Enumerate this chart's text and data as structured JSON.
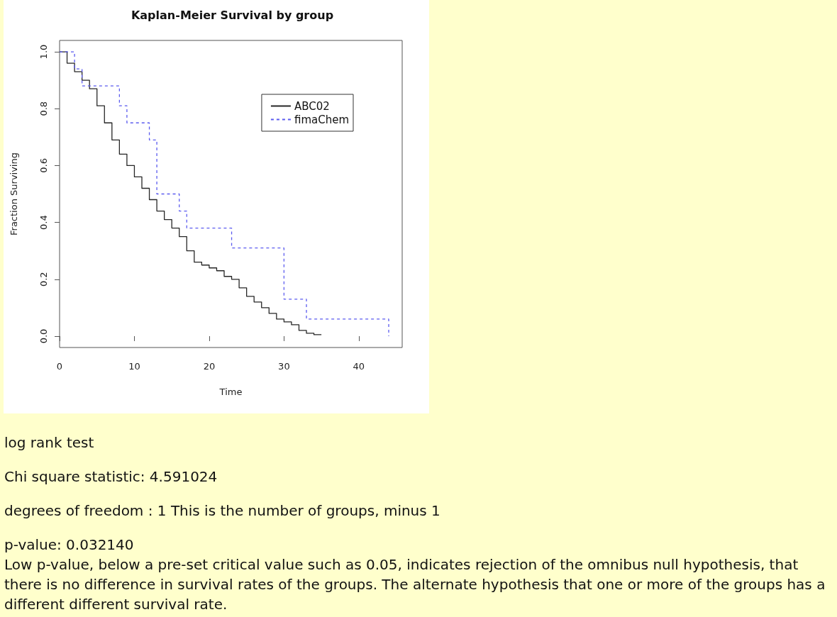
{
  "chart_data": {
    "type": "step",
    "title": "Kaplan-Meier Survival by group",
    "xlabel": "Time",
    "ylabel": "Fraction Surviving",
    "series": [
      {
        "name": "ABC02",
        "color": "#262626",
        "line_style": "solid",
        "x": [
          0,
          1,
          2,
          3,
          4,
          5,
          6,
          7,
          8,
          9,
          10,
          11,
          12,
          13,
          14,
          15,
          16,
          17,
          18,
          19,
          20,
          21,
          22,
          23,
          24,
          25,
          26,
          27,
          28,
          29,
          30,
          31,
          32,
          33,
          34,
          35
        ],
        "values": [
          1.0,
          0.96,
          0.93,
          0.9,
          0.87,
          0.81,
          0.75,
          0.69,
          0.64,
          0.6,
          0.56,
          0.52,
          0.48,
          0.44,
          0.41,
          0.38,
          0.35,
          0.3,
          0.26,
          0.25,
          0.24,
          0.23,
          0.21,
          0.2,
          0.17,
          0.14,
          0.12,
          0.1,
          0.08,
          0.06,
          0.05,
          0.04,
          0.02,
          0.01,
          0.005,
          0.005
        ]
      },
      {
        "name": "fimaChem",
        "color": "#5b5bef",
        "line_style": "dashed",
        "x": [
          0,
          2,
          3,
          8,
          9,
          12,
          13,
          16,
          17,
          23,
          30,
          33,
          44
        ],
        "values": [
          1.0,
          0.94,
          0.88,
          0.81,
          0.75,
          0.69,
          0.5,
          0.44,
          0.38,
          0.31,
          0.13,
          0.06,
          0
        ]
      }
    ],
    "xlim": [
      0,
      45.8
    ],
    "ylim": [
      -0.04,
      1.04
    ],
    "xticks": [
      0,
      10,
      20,
      30,
      40
    ],
    "yticks": [
      {
        "value": 0,
        "label": "0.0"
      },
      0.2,
      0.4,
      0.6,
      0.8,
      {
        "value": 1,
        "label": "1.0"
      }
    ],
    "legend": "top right",
    "annotations": [
      "log rank test",
      "Chi square statistic: 4.591024",
      "degrees of freedom : 1 This is the number of groups, minus 1",
      "p-value: 0.032140\nLow p-value, below a pre-set critical value such as 0.05, indicates rejection of the omnibus null hypothesis, that there is no difference in survival rates of the groups. The alternate hypothesis that one or more of the groups has a different different survival rate."
    ]
  }
}
